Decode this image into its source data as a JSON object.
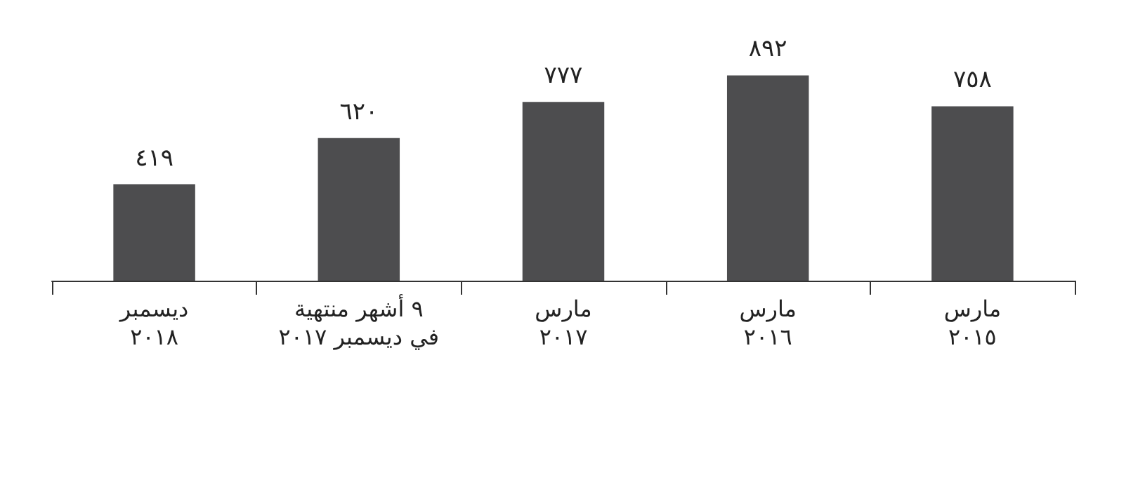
{
  "chart_data": {
    "type": "bar",
    "categories": [
      "ديسمبر\n٢٠١٨",
      "٩ أشهر منتهية\nفي ديسمبر ٢٠١٧",
      "مارس\n٢٠١٧",
      "مارس\n٢٠١٦",
      "مارس\n٢٠١٥"
    ],
    "values": [
      419,
      620,
      777,
      892,
      758
    ],
    "value_labels": [
      "٤١٩",
      "٦٢٠",
      "٧٧٧",
      "٨٩٢",
      "٧٥٨"
    ],
    "color": "#4d4d4f",
    "grid": false,
    "tick_labels": "x"
  }
}
